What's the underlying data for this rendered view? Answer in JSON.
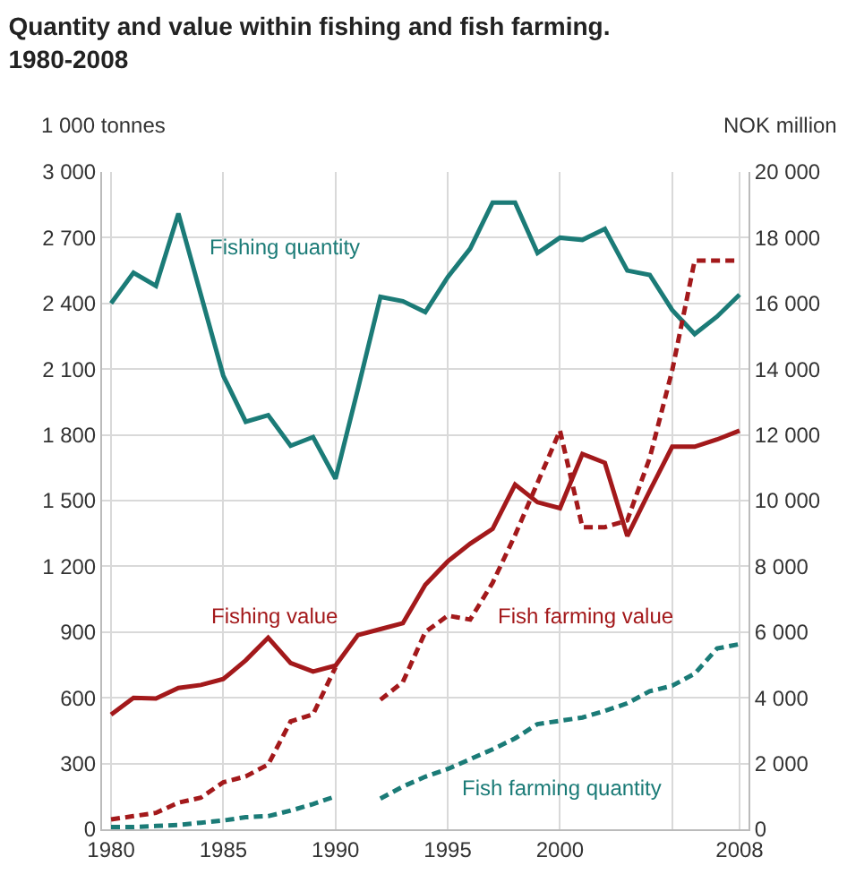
{
  "chart_data": {
    "type": "line",
    "title": "Quantity and value within fishing and fish farming.\n1980-2008",
    "ylabel": "1 000 tonnes",
    "y2label": "NOK million",
    "x": [
      1980,
      1981,
      1982,
      1983,
      1984,
      1985,
      1986,
      1987,
      1988,
      1989,
      1990,
      1991,
      1992,
      1993,
      1994,
      1995,
      1996,
      1997,
      1998,
      1999,
      2000,
      2001,
      2002,
      2003,
      2004,
      2005,
      2006,
      2007,
      2008
    ],
    "series": [
      {
        "name": "Fishing quantity",
        "color": "#1b7b77",
        "line_style": "solid",
        "values": [
          2400,
          2540,
          2480,
          2810,
          2440,
          2070,
          1860,
          1890,
          1750,
          1790,
          1600,
          2010,
          2430,
          2410,
          2360,
          2520,
          2650,
          2860,
          2860,
          2630,
          2700,
          2690,
          2740,
          2550,
          2530,
          2370,
          2260,
          2340,
          2440
        ]
      },
      {
        "name": "Fishing value",
        "color": "#a3191b",
        "line_style": "solid",
        "axis": "y2",
        "values": [
          3490,
          4000,
          3980,
          4300,
          4390,
          4570,
          5140,
          5830,
          5060,
          4800,
          4980,
          5910,
          6090,
          6270,
          7440,
          8150,
          8690,
          9140,
          10490,
          9950,
          9770,
          11420,
          11150,
          8920,
          10300,
          11640,
          11640,
          11860,
          12130
        ]
      },
      {
        "name": "Fish farming value",
        "color": "#a3191b",
        "line_style": "dashed",
        "axis": "y2",
        "values": [
          300,
          400,
          500,
          810,
          960,
          1430,
          1610,
          1970,
          3280,
          3500,
          4930,
          null,
          3940,
          4480,
          6000,
          6500,
          6380,
          7500,
          8950,
          10540,
          12130,
          9190,
          9190,
          9400,
          11300,
          13960,
          17300,
          17300,
          17300
        ]
      },
      {
        "name": "Fish farming quantity",
        "color": "#1b7b77",
        "line_style": "dashed",
        "values": [
          10,
          10,
          15,
          20,
          30,
          40,
          55,
          60,
          85,
          115,
          150,
          null,
          140,
          195,
          240,
          275,
          320,
          365,
          415,
          480,
          495,
          510,
          540,
          575,
          630,
          655,
          710,
          825,
          845
        ]
      }
    ],
    "xlim": [
      1979.6,
      2008.4
    ],
    "xticks": [
      1980,
      1985,
      1990,
      1995,
      2000,
      {
        "value": 2005,
        "label": null
      },
      2008
    ],
    "ylim": [
      0,
      3000
    ],
    "yticks": [
      0,
      300,
      600,
      900,
      {
        "value": 1200,
        "label": "1 200"
      },
      {
        "value": 1500,
        "label": "1 500"
      },
      {
        "value": 1800,
        "label": "1 800"
      },
      {
        "value": 2100,
        "label": "2 100"
      },
      {
        "value": 2400,
        "label": "2 400"
      },
      {
        "value": 2700,
        "label": "2 700"
      },
      {
        "value": 3000,
        "label": "3 000"
      }
    ],
    "y2lim": [
      0,
      20000
    ],
    "y2ticks": [
      0,
      {
        "value": 2000,
        "label": "2 000"
      },
      {
        "value": 4000,
        "label": "4 000"
      },
      {
        "value": 6000,
        "label": "6 000"
      },
      {
        "value": 8000,
        "label": "8 000"
      },
      {
        "value": 10000,
        "label": "10 000"
      },
      {
        "value": 12000,
        "label": "12 000"
      },
      {
        "value": 14000,
        "label": "14 000"
      },
      {
        "value": 16000,
        "label": "16 000"
      },
      {
        "value": 18000,
        "label": "18 000"
      },
      {
        "value": 20000,
        "label": "20 000"
      }
    ],
    "grid": true,
    "legend": false,
    "marker": "none"
  }
}
